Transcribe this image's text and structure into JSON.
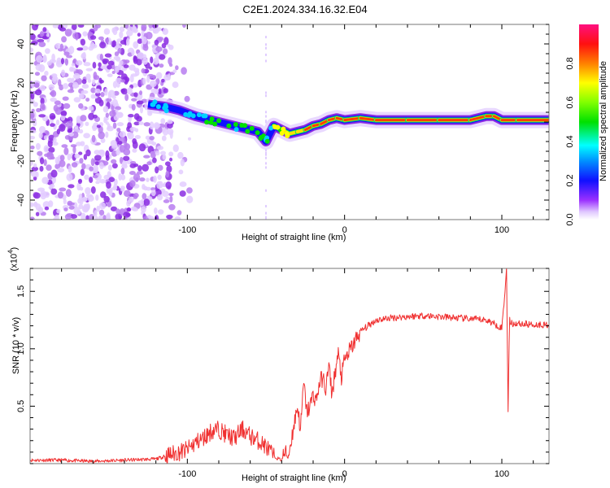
{
  "chart_data": [
    {
      "type": "heatmap",
      "title": "C2E1.2024.334.16.32.E04",
      "xlabel": "Height of straight line (km)",
      "ylabel": "Frequency (Hz)",
      "xlim": [
        -200,
        130
      ],
      "ylim": [
        -50,
        50
      ],
      "xticks": [
        -100,
        0,
        100
      ],
      "xtick_labels": [
        "-100",
        "0",
        "100"
      ],
      "yticks": [
        -40,
        -20,
        0,
        20,
        40
      ],
      "ytick_labels": [
        "-40",
        "-20",
        "0",
        "20",
        "40"
      ],
      "colorbar": {
        "label": "Normalized spectral amplitude",
        "range": [
          0,
          1
        ],
        "ticks": [
          0.0,
          0.2,
          0.4,
          0.6,
          0.8
        ],
        "tick_labels": [
          "0.0",
          "0.2",
          "0.4",
          "0.6",
          "0.8"
        ],
        "colors": [
          "#ffffff",
          "#e6ccff",
          "#8800ff",
          "#0000ff",
          "#00ffff",
          "#00ff00",
          "#ffff00",
          "#ff8000",
          "#ff0000",
          "#ff0080"
        ]
      },
      "ridge": {
        "x": [
          -125,
          -115,
          -105,
          -95,
          -85,
          -75,
          -65,
          -55,
          -50,
          -45,
          -40,
          -35,
          -30,
          -25,
          -20,
          -15,
          -10,
          -5,
          0,
          10,
          20,
          40,
          60,
          80,
          90,
          95,
          100,
          110,
          130
        ],
        "y": [
          9,
          8,
          6,
          3,
          1,
          -1,
          -3,
          -5,
          -10,
          -2,
          -4,
          -6,
          -5,
          -4,
          -2,
          -1,
          1,
          2,
          1,
          2,
          1,
          1,
          1,
          1,
          3,
          3,
          1,
          1,
          1
        ],
        "amplitude": [
          0.3,
          0.3,
          0.35,
          0.4,
          0.45,
          0.45,
          0.5,
          0.5,
          0.35,
          0.6,
          0.7,
          0.75,
          0.8,
          0.85,
          0.9,
          0.95,
          0.95,
          0.95,
          0.95,
          0.9,
          0.95,
          0.95,
          0.95,
          0.9,
          0.95,
          0.95,
          0.9,
          0.95,
          0.95
        ]
      },
      "noise_region_x": [
        -200,
        -110
      ]
    },
    {
      "type": "line",
      "xlabel": "Height of straight line (km)",
      "ylabel": "SNR (10 * v/v)",
      "yscale_label": "(x10",
      "yscale_exp": "4",
      "yscale_close": ")",
      "xlim": [
        -200,
        130
      ],
      "ylim": [
        0,
        1.7
      ],
      "xticks": [
        -100,
        0,
        100
      ],
      "xtick_labels": [
        "-100",
        "0",
        "100"
      ],
      "yticks": [
        0.5,
        1.0,
        1.5
      ],
      "ytick_labels": [
        "0.5",
        "1.0",
        "1.5"
      ],
      "series": [
        {
          "name": "SNR",
          "color": "#f03030",
          "x": [
            -200,
            -180,
            -160,
            -140,
            -120,
            -110,
            -100,
            -95,
            -90,
            -85,
            -80,
            -75,
            -70,
            -65,
            -60,
            -55,
            -50,
            -45,
            -40,
            -38,
            -36,
            -34,
            -32,
            -30,
            -28,
            -26,
            -24,
            -22,
            -20,
            -18,
            -16,
            -14,
            -12,
            -10,
            -8,
            -6,
            -4,
            -2,
            0,
            2,
            4,
            6,
            8,
            10,
            15,
            20,
            30,
            40,
            50,
            60,
            70,
            80,
            90,
            95,
            100,
            102,
            103,
            104,
            105,
            106,
            110,
            120,
            130
          ],
          "y": [
            0.03,
            0.03,
            0.02,
            0.03,
            0.04,
            0.08,
            0.12,
            0.18,
            0.22,
            0.28,
            0.3,
            0.25,
            0.22,
            0.3,
            0.24,
            0.2,
            0.15,
            0.06,
            0.03,
            0.1,
            0.05,
            0.2,
            0.35,
            0.5,
            0.3,
            0.7,
            0.45,
            0.5,
            0.6,
            0.55,
            0.7,
            0.75,
            0.65,
            0.85,
            0.6,
            0.8,
            0.95,
            0.75,
            0.9,
            0.95,
            1.0,
            1.05,
            1.1,
            1.15,
            1.2,
            1.25,
            1.27,
            1.28,
            1.29,
            1.28,
            1.27,
            1.26,
            1.25,
            1.22,
            1.18,
            1.5,
            1.7,
            0.5,
            1.25,
            1.22,
            1.22,
            1.21,
            1.21
          ]
        }
      ]
    }
  ]
}
